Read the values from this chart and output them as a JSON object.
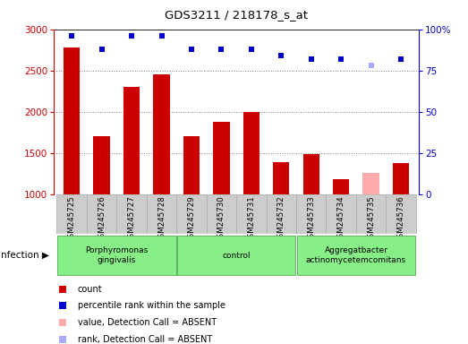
{
  "title": "GDS3211 / 218178_s_at",
  "samples": [
    "GSM245725",
    "GSM245726",
    "GSM245727",
    "GSM245728",
    "GSM245729",
    "GSM245730",
    "GSM245731",
    "GSM245732",
    "GSM245733",
    "GSM245734",
    "GSM245735",
    "GSM245736"
  ],
  "counts": [
    2780,
    1700,
    2300,
    2450,
    1700,
    1880,
    2000,
    1390,
    1490,
    1180,
    1260,
    1380
  ],
  "percentile_ranks": [
    96,
    88,
    96,
    96,
    88,
    88,
    88,
    84,
    82,
    82,
    78,
    82
  ],
  "absent_mask": [
    false,
    false,
    false,
    false,
    false,
    false,
    false,
    false,
    false,
    false,
    true,
    false
  ],
  "group_ranges": [
    [
      0,
      3
    ],
    [
      4,
      7
    ],
    [
      8,
      11
    ]
  ],
  "group_labels": [
    "Porphyromonas\ngingivalis",
    "control",
    "Aggregatbacter\nactinomycetemcomitans"
  ],
  "group_color": "#88ee88",
  "ylim_left": [
    1000,
    3000
  ],
  "ylim_right": [
    0,
    100
  ],
  "yticks_left": [
    1000,
    1500,
    2000,
    2500,
    3000
  ],
  "yticks_right": [
    0,
    25,
    50,
    75,
    100
  ],
  "bar_color": "#cc0000",
  "absent_bar_color": "#ffaaaa",
  "dot_color": "#0000cc",
  "absent_dot_color": "#aaaaff",
  "xlabels_bg_color": "#cccccc",
  "legend_items": [
    [
      "#cc0000",
      "count"
    ],
    [
      "#0000cc",
      "percentile rank within the sample"
    ],
    [
      "#ffaaaa",
      "value, Detection Call = ABSENT"
    ],
    [
      "#aaaaff",
      "rank, Detection Call = ABSENT"
    ]
  ]
}
